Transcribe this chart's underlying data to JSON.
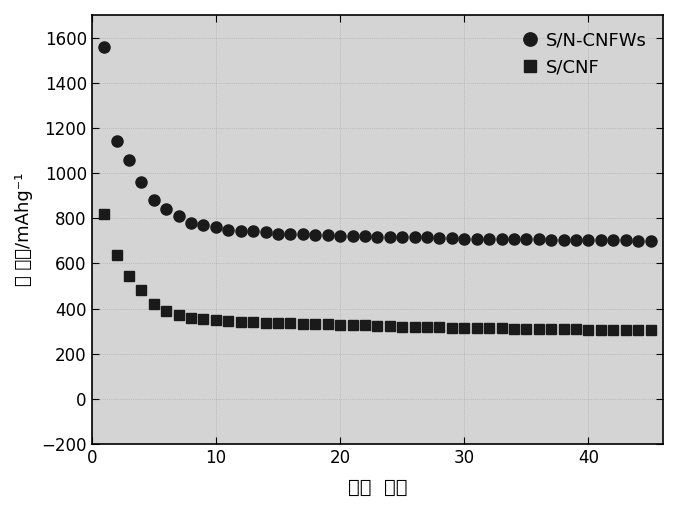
{
  "series1_name": "S/N-CNFWs",
  "series2_name": "S/CNF",
  "series1_marker": "o",
  "series2_marker": "s",
  "series1_x": [
    1,
    2,
    3,
    4,
    5,
    6,
    7,
    8,
    9,
    10,
    11,
    12,
    13,
    14,
    15,
    16,
    17,
    18,
    19,
    20,
    21,
    22,
    23,
    24,
    25,
    26,
    27,
    28,
    29,
    30,
    31,
    32,
    33,
    34,
    35,
    36,
    37,
    38,
    39,
    40,
    41,
    42,
    43,
    44,
    45
  ],
  "series1_y": [
    1560,
    1140,
    1060,
    960,
    880,
    840,
    810,
    780,
    770,
    760,
    750,
    745,
    745,
    740,
    730,
    730,
    730,
    725,
    725,
    720,
    720,
    720,
    718,
    718,
    715,
    715,
    715,
    712,
    712,
    710,
    710,
    710,
    708,
    708,
    706,
    706,
    705,
    704,
    704,
    704,
    703,
    703,
    703,
    700,
    698
  ],
  "series2_x": [
    1,
    2,
    3,
    4,
    5,
    6,
    7,
    8,
    9,
    10,
    11,
    12,
    13,
    14,
    15,
    16,
    17,
    18,
    19,
    20,
    21,
    22,
    23,
    24,
    25,
    26,
    27,
    28,
    29,
    30,
    31,
    32,
    33,
    34,
    35,
    36,
    37,
    38,
    39,
    40,
    41,
    42,
    43,
    44,
    45
  ],
  "series2_y": [
    820,
    635,
    545,
    480,
    420,
    390,
    370,
    360,
    355,
    350,
    345,
    342,
    340,
    338,
    336,
    335,
    333,
    332,
    330,
    328,
    326,
    325,
    323,
    322,
    320,
    320,
    318,
    318,
    316,
    315,
    314,
    313,
    312,
    311,
    310,
    310,
    309,
    308,
    308,
    307,
    306,
    306,
    305,
    305,
    304
  ],
  "xlim": [
    0,
    46
  ],
  "ylim": [
    -200,
    1700
  ],
  "yticks": [
    -200,
    0,
    200,
    400,
    600,
    800,
    1000,
    1200,
    1400,
    1600
  ],
  "xticks": [
    0,
    10,
    20,
    30,
    40
  ],
  "xlabel": "微环  圈数",
  "ylabel": "比 容量/mAhg⁻¹",
  "color": "#1a1a1a",
  "marker_size": 8,
  "legend_loc": "upper right",
  "bg_color": "#d4d4d4",
  "title": ""
}
